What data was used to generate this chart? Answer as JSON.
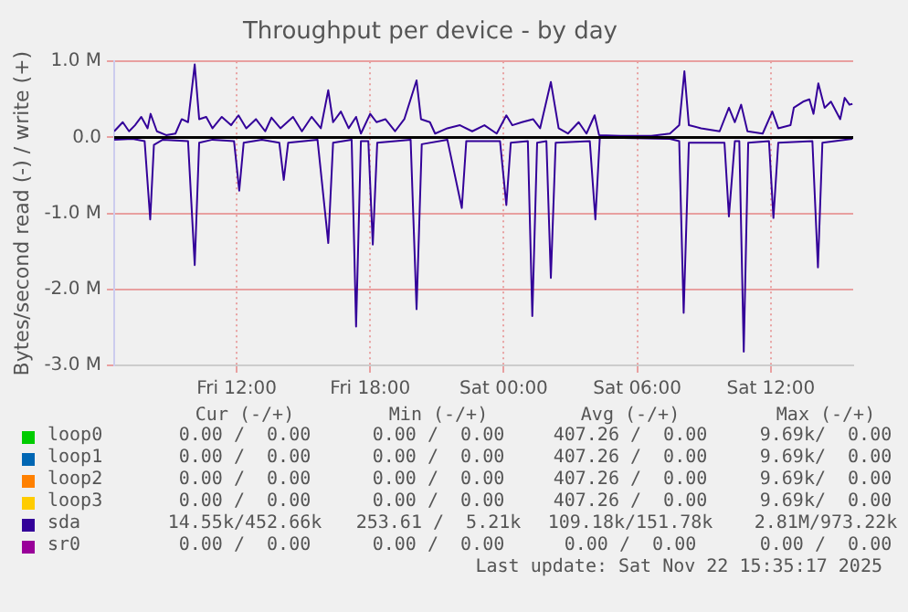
{
  "chart_data": {
    "type": "line",
    "title": "Throughput per device - by day",
    "ylabel": "Bytes/second read (-) / write (+)",
    "xlim": [
      "2025-11-21T06:30",
      "2025-11-22T15:42"
    ],
    "xticks": [
      {
        "value": "2025-11-21T12:00",
        "label": "Fri 12:00"
      },
      {
        "value": "2025-11-21T18:00",
        "label": "Fri 18:00"
      },
      {
        "value": "2025-11-22T00:00",
        "label": "Sat 00:00"
      },
      {
        "value": "2025-11-22T06:00",
        "label": "Sat 06:00"
      },
      {
        "value": "2025-11-22T12:00",
        "label": "Sat 12:00"
      }
    ],
    "ylim": [
      -3000000,
      1000000
    ],
    "yticks": [
      {
        "value": -3000000,
        "label": "-3.0 M"
      },
      {
        "value": -2000000,
        "label": "-2.0 M"
      },
      {
        "value": -1000000,
        "label": "-1.0 M"
      },
      {
        "value": 0,
        "label": "0.0"
      },
      {
        "value": 1000000,
        "label": "1.0 M"
      }
    ],
    "grid": true,
    "legend": "bottom",
    "marker": "none",
    "line_style": "solid",
    "ref_lines": [
      {
        "axis": "y",
        "value": 0,
        "color": "#000000"
      }
    ],
    "series": [
      {
        "name": "loop0",
        "color": "#00cc00"
      },
      {
        "name": "loop1",
        "color": "#0066b3"
      },
      {
        "name": "loop2",
        "color": "#ff8000"
      },
      {
        "name": "loop3",
        "color": "#ffcc00"
      },
      {
        "name": "sda",
        "color": "#330099",
        "x": [
          "2025-11-21T06:30",
          "2025-11-21T06:53",
          "2025-11-21T07:10",
          "2025-11-21T07:26",
          "2025-11-21T07:43",
          "2025-11-21T08:00",
          "2025-11-21T08:08",
          "2025-11-21T08:25",
          "2025-11-21T08:50",
          "2025-11-21T09:15",
          "2025-11-21T09:32",
          "2025-11-21T09:49",
          "2025-11-21T10:07",
          "2025-11-21T10:19",
          "2025-11-21T10:38",
          "2025-11-21T10:55",
          "2025-11-21T11:20",
          "2025-11-21T11:45",
          "2025-11-21T12:05",
          "2025-11-21T12:26",
          "2025-11-21T12:52",
          "2025-11-21T13:17",
          "2025-11-21T13:34",
          "2025-11-21T13:58",
          "2025-11-21T14:32",
          "2025-11-21T14:56",
          "2025-11-21T15:22",
          "2025-11-21T15:47",
          "2025-11-21T16:07",
          "2025-11-21T16:20",
          "2025-11-21T16:41",
          "2025-11-21T17:02",
          "2025-11-21T17:22",
          "2025-11-21T17:35",
          "2025-11-21T18:00",
          "2025-11-21T18:17",
          "2025-11-21T18:41",
          "2025-11-21T19:07",
          "2025-11-21T19:32",
          "2025-11-21T20:05",
          "2025-11-21T20:17",
          "2025-11-21T20:41",
          "2025-11-21T20:55",
          "2025-11-21T21:28",
          "2025-11-21T22:02",
          "2025-11-21T22:35",
          "2025-11-21T23:08",
          "2025-11-21T23:41",
          "2025-11-22T00:07",
          "2025-11-22T00:23",
          "2025-11-22T00:49",
          "2025-11-22T01:19",
          "2025-11-22T01:38",
          "2025-11-22T02:07",
          "2025-11-22T02:28",
          "2025-11-22T02:53",
          "2025-11-22T03:22",
          "2025-11-22T03:43",
          "2025-11-22T04:05",
          "2025-11-22T04:17",
          "2025-11-22T05:15",
          "2025-11-22T06:38",
          "2025-11-22T07:28",
          "2025-11-22T07:53",
          "2025-11-22T08:07",
          "2025-11-22T08:19",
          "2025-11-22T08:52",
          "2025-11-22T09:42",
          "2025-11-22T10:07",
          "2025-11-22T10:23",
          "2025-11-22T10:40",
          "2025-11-22T10:57",
          "2025-11-22T11:38",
          "2025-11-22T12:04",
          "2025-11-22T12:20",
          "2025-11-22T12:53",
          "2025-11-22T13:02",
          "2025-11-22T13:27",
          "2025-11-22T13:44",
          "2025-11-22T13:55",
          "2025-11-22T14:08",
          "2025-11-22T14:25",
          "2025-11-22T14:42",
          "2025-11-22T15:07",
          "2025-11-22T15:19",
          "2025-11-22T15:32",
          "2025-11-22T15:40"
        ],
        "values": [
          80000,
          200000,
          80000,
          160000,
          270000,
          120000,
          310000,
          80000,
          30000,
          50000,
          240000,
          200000,
          960000,
          240000,
          270000,
          120000,
          270000,
          160000,
          290000,
          120000,
          240000,
          80000,
          260000,
          120000,
          270000,
          80000,
          270000,
          120000,
          620000,
          200000,
          340000,
          120000,
          270000,
          50000,
          310000,
          200000,
          240000,
          80000,
          240000,
          750000,
          240000,
          200000,
          50000,
          120000,
          160000,
          80000,
          160000,
          50000,
          290000,
          160000,
          200000,
          240000,
          120000,
          730000,
          120000,
          50000,
          200000,
          50000,
          290000,
          30000,
          20000,
          20000,
          50000,
          160000,
          870000,
          160000,
          120000,
          80000,
          390000,
          200000,
          430000,
          80000,
          50000,
          340000,
          120000,
          160000,
          390000,
          470000,
          500000,
          310000,
          710000,
          390000,
          470000,
          240000,
          520000,
          430000,
          440000
        ]
      },
      {
        "color": "#330099",
        "x": [
          "2025-11-21T06:30",
          "2025-11-21T07:19",
          "2025-11-21T07:52",
          "2025-11-21T08:07",
          "2025-11-21T08:17",
          "2025-11-21T08:41",
          "2025-11-21T09:49",
          "2025-11-21T10:07",
          "2025-11-21T10:19",
          "2025-11-21T10:55",
          "2025-11-21T11:53",
          "2025-11-21T12:07",
          "2025-11-21T12:19",
          "2025-11-21T13:08",
          "2025-11-21T13:55",
          "2025-11-21T14:07",
          "2025-11-21T14:19",
          "2025-11-21T15:38",
          "2025-11-21T16:07",
          "2025-11-21T16:20",
          "2025-11-21T17:10",
          "2025-11-21T17:22",
          "2025-11-21T17:35",
          "2025-11-21T17:55",
          "2025-11-21T18:07",
          "2025-11-21T18:19",
          "2025-11-21T19:49",
          "2025-11-21T20:05",
          "2025-11-21T20:19",
          "2025-11-21T21:28",
          "2025-11-21T22:07",
          "2025-11-21T22:19",
          "2025-11-21T23:50",
          "2025-11-22T00:07",
          "2025-11-22T00:19",
          "2025-11-22T01:05",
          "2025-11-22T01:17",
          "2025-11-22T01:30",
          "2025-11-22T01:55",
          "2025-11-22T02:07",
          "2025-11-22T02:20",
          "2025-11-22T03:52",
          "2025-11-22T04:07",
          "2025-11-22T04:19",
          "2025-11-22T07:28",
          "2025-11-22T07:53",
          "2025-11-22T08:05",
          "2025-11-22T08:19",
          "2025-11-22T09:55",
          "2025-11-22T10:07",
          "2025-11-22T10:23",
          "2025-11-22T10:35",
          "2025-11-22T10:47",
          "2025-11-22T10:59",
          "2025-11-22T11:55",
          "2025-11-22T12:07",
          "2025-11-22T12:20",
          "2025-11-22T13:52",
          "2025-11-22T14:07",
          "2025-11-22T14:19",
          "2025-11-22T15:40"
        ],
        "values": [
          -30000,
          -20000,
          -50000,
          -1080000,
          -100000,
          -30000,
          -50000,
          -1680000,
          -70000,
          -30000,
          -50000,
          -700000,
          -70000,
          -30000,
          -70000,
          -560000,
          -70000,
          -30000,
          -1390000,
          -70000,
          -30000,
          -2490000,
          -50000,
          -50000,
          -1410000,
          -70000,
          -30000,
          -2260000,
          -90000,
          -30000,
          -930000,
          -50000,
          -50000,
          -890000,
          -70000,
          -50000,
          -2350000,
          -70000,
          -50000,
          -1850000,
          -70000,
          -50000,
          -1080000,
          0,
          -20000,
          -50000,
          -2310000,
          -70000,
          -70000,
          -1040000,
          -50000,
          -50000,
          -2820000,
          -70000,
          -50000,
          -1060000,
          -70000,
          -50000,
          -1710000,
          -70000,
          -20000
        ]
      },
      {
        "name": "sr0",
        "color": "#990099"
      }
    ],
    "annotations": [
      "Cur (-/+)",
      "Min (-/+)",
      "Avg (-/+)",
      "Max (-/+)",
      "0.00 /  0.00",
      "0.00 /  0.00",
      "407.26 /  0.00",
      "9.69k/  0.00",
      "0.00 /  0.00",
      "0.00 /  0.00",
      "407.26 /  0.00",
      "9.69k/  0.00",
      "0.00 /  0.00",
      "0.00 /  0.00",
      "407.26 /  0.00",
      "9.69k/  0.00",
      "0.00 /  0.00",
      "0.00 /  0.00",
      "407.26 /  0.00",
      "9.69k/  0.00",
      "14.55k/452.66k",
      "253.61 /  5.21k",
      "109.18k/151.78k",
      "2.81M/973.22k",
      "0.00 /  0.00",
      "0.00 /  0.00",
      "0.00 /  0.00",
      "0.00 /  0.00",
      "Last update: Sat Nov 22 15:35:17 2025"
    ]
  }
}
